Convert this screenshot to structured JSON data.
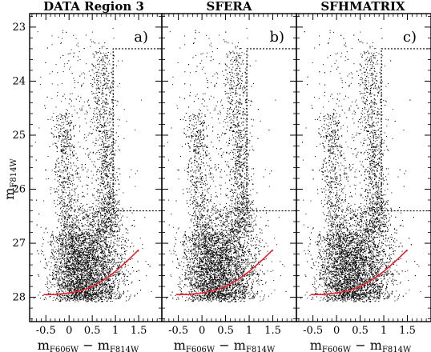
{
  "chart_data": {
    "type": "scatter",
    "layout": "three panels sharing one y axis",
    "y_axis": {
      "label_main": "m",
      "label_sub": "F814W",
      "range": [
        22.75,
        28.45
      ],
      "inverted": true,
      "ticks": [
        23,
        24,
        25,
        26,
        27,
        28
      ],
      "tick_labels": [
        "23",
        "24",
        "25",
        "26",
        "27",
        "28"
      ]
    },
    "x_axis": {
      "range": [
        -0.85,
        2.0
      ],
      "ticks": [
        -0.5,
        0,
        0.5,
        1,
        1.5
      ],
      "tick_labels": [
        "-0.5",
        "0",
        "0.5",
        "1",
        "1.5"
      ],
      "label": {
        "m1": "m",
        "sub1": "F606W",
        "minus": " − ",
        "m2": "m",
        "sub2": "F814W"
      }
    },
    "grid": false,
    "legend": "none",
    "panels": [
      {
        "title": "DATA Region 3",
        "letter": "a)"
      },
      {
        "title": "SFERA",
        "letter": "b)"
      },
      {
        "title": "SFHMATRIX",
        "letter": "c)"
      }
    ],
    "overlays": {
      "completeness_curve": {
        "color": "#e8202a",
        "x": [
          -0.55,
          -0.3,
          0.0,
          0.25,
          0.5,
          0.75,
          1.0,
          1.25,
          1.5
        ],
        "y": [
          27.95,
          27.95,
          27.92,
          27.88,
          27.8,
          27.68,
          27.52,
          27.33,
          27.12
        ]
      },
      "selection_box": {
        "style": "dotted",
        "color": "#000000",
        "x": [
          0.95,
          2.0
        ],
        "y": [
          23.4,
          26.4
        ]
      }
    },
    "point_density_model": {
      "n_points_per_panel": 7000,
      "components": [
        {
          "weight": 0.36,
          "x_center": 0.15,
          "x_sigma": 0.3,
          "y_range": [
            26.8,
            28.05
          ]
        },
        {
          "weight": 0.25,
          "x_center": 0.65,
          "x_sigma": 0.3,
          "y_range": [
            26.3,
            28.05
          ]
        },
        {
          "weight": 0.12,
          "x_center": 0.0,
          "x_sigma": 0.14,
          "y_range": [
            24.5,
            27.0
          ]
        },
        {
          "weight": 0.17,
          "x_center": 0.88,
          "x_sigma": 0.12,
          "y_range": [
            23.4,
            26.8
          ]
        },
        {
          "weight": 0.1,
          "x_center": 0.45,
          "x_sigma": 0.5,
          "y_range": [
            23.0,
            28.0
          ]
        }
      ],
      "color": "#000000"
    }
  }
}
